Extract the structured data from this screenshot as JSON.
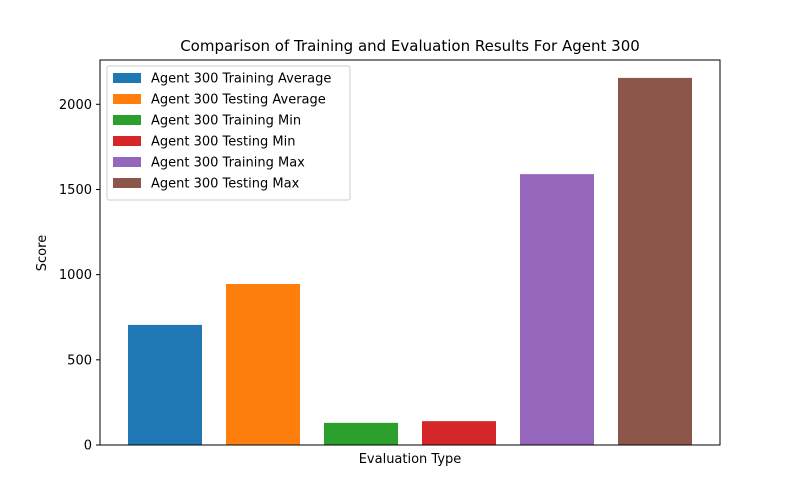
{
  "chart_data": {
    "type": "bar",
    "title": "Comparison of Training and Evaluation Results For Agent 300",
    "xlabel": "Evaluation Type",
    "ylabel": "Score",
    "ylim": [
      0,
      2260
    ],
    "yticks": [
      0,
      500,
      1000,
      1500,
      2000
    ],
    "grid": false,
    "legend_position": "top-left",
    "series": [
      {
        "name": "Agent 300 Training Average",
        "value": 705,
        "color": "#1f77b4"
      },
      {
        "name": "Agent 300 Testing Average",
        "value": 945,
        "color": "#ff7f0e"
      },
      {
        "name": "Agent 300 Training Min",
        "value": 130,
        "color": "#2ca02c"
      },
      {
        "name": "Agent 300 Testing Min",
        "value": 140,
        "color": "#d62728"
      },
      {
        "name": "Agent 300 Training Max",
        "value": 1590,
        "color": "#9467bd"
      },
      {
        "name": "Agent 300 Testing Max",
        "value": 2155,
        "color": "#8c564b"
      }
    ]
  }
}
